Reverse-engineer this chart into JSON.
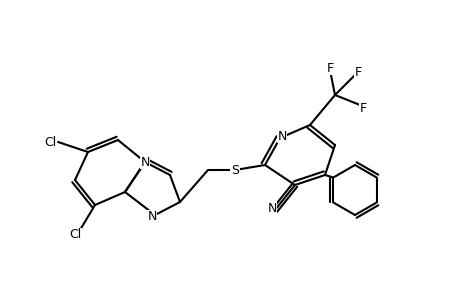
{
  "bg_color": "#ffffff",
  "line_color": "#000000",
  "lw": 1.5,
  "fig_width": 4.6,
  "fig_height": 3.0,
  "dpi": 100,
  "xlim": [
    0,
    46
  ],
  "ylim": [
    0,
    30
  ]
}
